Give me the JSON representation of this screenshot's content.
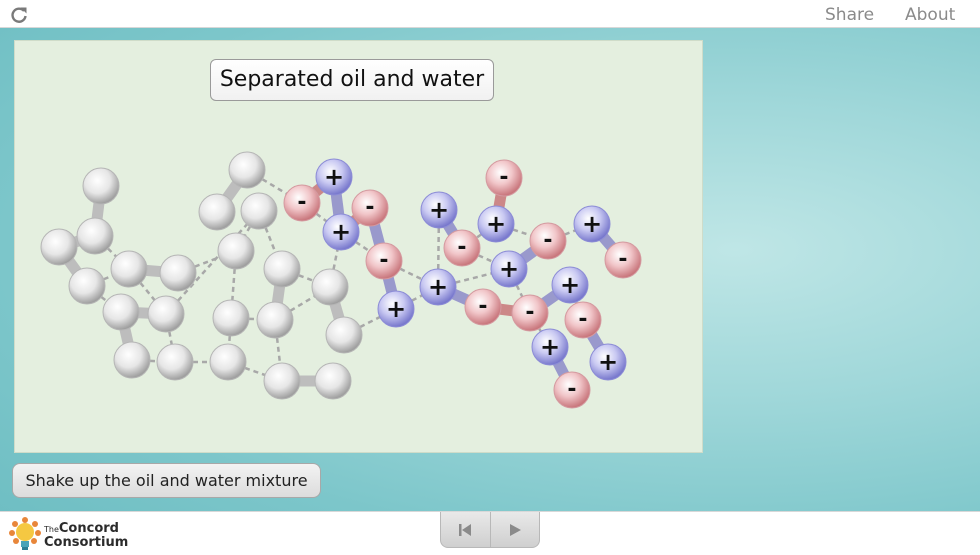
{
  "topbar": {
    "share_label": "Share",
    "about_label": "About",
    "reload_icon": "reload-icon"
  },
  "model": {
    "title": "Separated oil and water",
    "atom_colors": {
      "neutral": "#d9d9d9",
      "positive": "#a9a9e8",
      "negative": "#e8a9ad"
    },
    "positive_label": "+",
    "negative_label": "-"
  },
  "controls": {
    "shake_label": "Shake up the oil and water mixture"
  },
  "footer": {
    "logo_small": "The",
    "logo_line1": "Concord",
    "logo_line2": "Consortium",
    "prev_icon": "step-back-icon",
    "play_icon": "play-icon"
  }
}
